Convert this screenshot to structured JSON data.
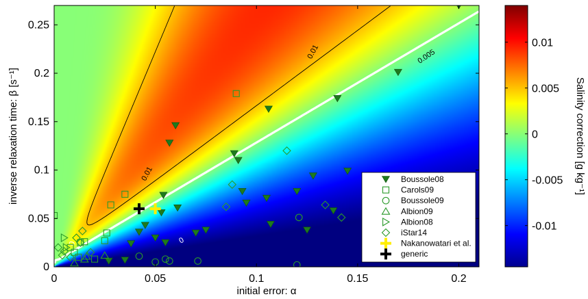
{
  "chart_data": {
    "type": "heatmap",
    "title": "",
    "xlabel": "initial error:  α",
    "ylabel": "inverse relaxation time:  β [s⁻¹]",
    "xlim": [
      0,
      0.21
    ],
    "ylim": [
      0,
      0.27
    ],
    "xticks": [
      0,
      0.05,
      0.1,
      0.15,
      0.2
    ],
    "xtick_labels": [
      "0",
      "0.05",
      "0.1",
      "0.15",
      "0.2"
    ],
    "yticks": [
      0,
      0.05,
      0.1,
      0.15,
      0.2,
      0.25
    ],
    "ytick_labels": [
      "0",
      "0.05",
      "0.1",
      "0.15",
      "0.2",
      "0.25"
    ],
    "colorbar": {
      "label": "Salinity correction [g kg⁻¹]",
      "range": [
        -0.0145,
        0.014
      ],
      "ticks": [
        0.01,
        0.005,
        0,
        -0.005,
        -0.01
      ],
      "tick_labels": [
        "0.01",
        "0.005",
        "0",
        "-0.005",
        "-0.01"
      ],
      "colormap": "jet"
    },
    "contours": [
      {
        "level": 0.01,
        "label": "0.01"
      },
      {
        "level": 0.005,
        "label": "0.005"
      },
      {
        "level": 0,
        "label": "0",
        "style": "white-thick"
      }
    ],
    "legend_position": "lower-right",
    "series": [
      {
        "name": "Boussole08",
        "marker": "filled-down-triangle",
        "color": "#1e7a1e",
        "points": [
          [
            0.027,
            0.006
          ],
          [
            0.035,
            0.007
          ],
          [
            0.038,
            0.024
          ],
          [
            0.042,
            0.036
          ],
          [
            0.045,
            0.043
          ],
          [
            0.05,
            0.03
          ],
          [
            0.053,
            0.056
          ],
          [
            0.054,
            0.074
          ],
          [
            0.055,
            0.025
          ],
          [
            0.057,
            0.128
          ],
          [
            0.06,
            0.146
          ],
          [
            0.061,
            0.061
          ],
          [
            0.07,
            0.035
          ],
          [
            0.075,
            0.038
          ],
          [
            0.089,
            0.117
          ],
          [
            0.091,
            0.11
          ],
          [
            0.093,
            0.078
          ],
          [
            0.095,
            0.066
          ],
          [
            0.105,
            0.071
          ],
          [
            0.106,
            0.163
          ],
          [
            0.107,
            0.044
          ],
          [
            0.12,
            0.078
          ],
          [
            0.125,
            0.038
          ],
          [
            0.128,
            0.094
          ],
          [
            0.138,
            0.058
          ],
          [
            0.14,
            0.174
          ],
          [
            0.145,
            0.099
          ],
          [
            0.17,
            0.201
          ],
          [
            0.2,
            0.27
          ]
        ]
      },
      {
        "name": "Carols09",
        "marker": "open-square",
        "color": "#2a9a2a",
        "points": [
          [
            0,
            0.053
          ],
          [
            0.008,
            0.02
          ],
          [
            0.01,
            0.015
          ],
          [
            0.012,
            0.01
          ],
          [
            0.013,
            0.025
          ],
          [
            0.015,
            0.026
          ],
          [
            0.02,
            0.008
          ],
          [
            0.025,
            0.027
          ],
          [
            0.026,
            0.035
          ],
          [
            0.028,
            0.064
          ],
          [
            0.035,
            0.075
          ],
          [
            0.09,
            0.179
          ]
        ]
      },
      {
        "name": "Boussole09",
        "marker": "open-circle",
        "color": "#2a9a2a",
        "points": [
          [
            0.042,
            0.011
          ],
          [
            0.05,
            0.005
          ],
          [
            0.055,
            0.008
          ],
          [
            0.057,
            0.006
          ],
          [
            0.071,
            0.006
          ],
          [
            0.12,
            0.002
          ],
          [
            0.121,
            0.051
          ]
        ]
      },
      {
        "name": "Albion09",
        "marker": "open-up-triangle",
        "color": "#2a9a2a",
        "points": [
          [
            0.01,
            0.004
          ],
          [
            0.015,
            0.008
          ],
          [
            0.016,
            0.011
          ],
          [
            0.025,
            0.012
          ]
        ]
      },
      {
        "name": "Albion08",
        "marker": "open-right-triangle",
        "color": "#2a9a2a",
        "points": [
          [
            0.005,
            0.03
          ],
          [
            0.006,
            0.02
          ]
        ]
      },
      {
        "name": "iStar14",
        "marker": "open-diamond",
        "color": "#2a9a2a",
        "points": [
          [
            0.002,
            0.02
          ],
          [
            0.004,
            0.012
          ],
          [
            0.005,
            0.016
          ],
          [
            0.008,
            0.01
          ],
          [
            0.011,
            0.03
          ],
          [
            0.013,
            0.025
          ],
          [
            0.014,
            0.037
          ],
          [
            0.018,
            0.015
          ],
          [
            0.085,
            0.062
          ],
          [
            0.088,
            0.085
          ],
          [
            0.115,
            0.12
          ],
          [
            0.134,
            0.064
          ],
          [
            0.142,
            0.051
          ]
        ]
      },
      {
        "name": "Nakanowatari et al.",
        "marker": "plus",
        "color": "#ffee00",
        "points": [
          [
            0.05,
            0.06
          ]
        ]
      },
      {
        "name": "generic",
        "marker": "plus",
        "color": "#000000",
        "points": [
          [
            0.042,
            0.06
          ]
        ]
      }
    ]
  }
}
